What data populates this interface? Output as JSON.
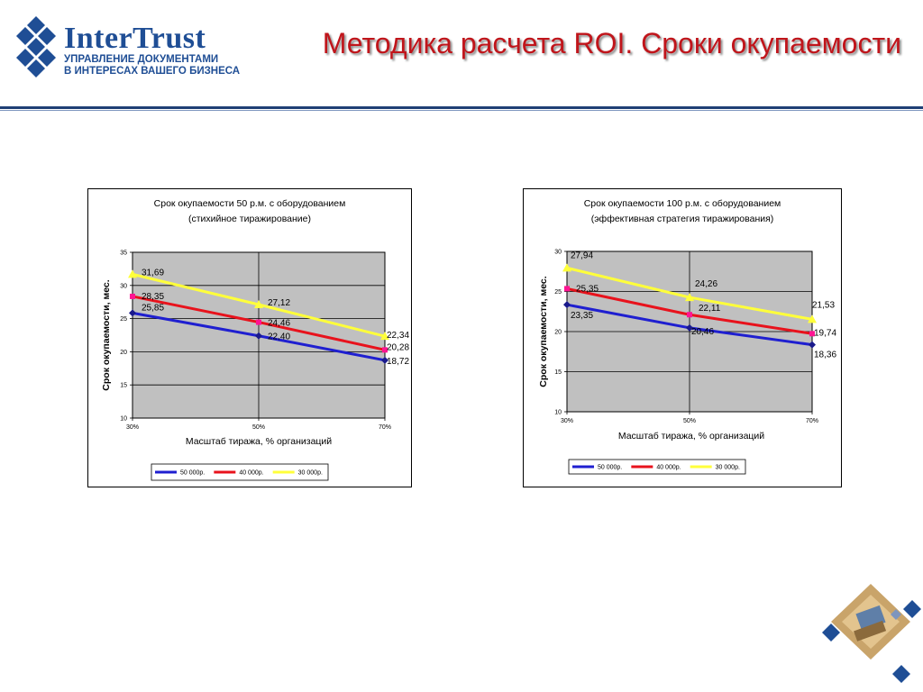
{
  "logo": {
    "name": "InterTrust",
    "tagline_line1": "УПРАВЛЕНИЕ ДОКУМЕНТАМИ",
    "tagline_line2": "В ИНТЕРЕСАХ ВАШЕГО БИЗНЕСА"
  },
  "slide_title": "Методика расчета ROI. Сроки окупаемости",
  "colors": {
    "brand_blue": "#1f4e95",
    "title_red": "#c0151b",
    "plot_gray": "#c0c0c0",
    "series_50000": "#1f1fd0",
    "series_40000": "#e8121c",
    "series_30000": "#ffff3a"
  },
  "chart_data": [
    {
      "type": "line",
      "title_line1": "Срок окупаемости 50 р.м. с оборудованием",
      "title_line2": "(стихийное тиражирование)",
      "xlabel": "Масштаб тиража, % организаций",
      "ylabel": "Срок окупаемости, мес.",
      "categories": [
        "30%",
        "50%",
        "70%"
      ],
      "ylim": [
        10,
        35
      ],
      "yticks": [
        "10",
        "15",
        "20",
        "25",
        "30",
        "35"
      ],
      "grid": true,
      "legend_position": "bottom",
      "series": [
        {
          "name": "50 000р.",
          "values": [
            25.85,
            22.4,
            18.72
          ],
          "labels": [
            "25,85",
            "22,40",
            "18,72"
          ],
          "marker": "diamond"
        },
        {
          "name": "40 000р.",
          "values": [
            28.35,
            24.46,
            20.28
          ],
          "labels": [
            "28,35",
            "24,46",
            "20,28"
          ],
          "marker": "square"
        },
        {
          "name": "30 000р.",
          "values": [
            31.69,
            27.12,
            22.34
          ],
          "labels": [
            "31,69",
            "27,12",
            "22,34"
          ],
          "marker": "triangle"
        }
      ]
    },
    {
      "type": "line",
      "title_line1": "Срок окупаемости 100 р.м. с оборудованием",
      "title_line2": "(эффективная стратегия тиражирования)",
      "xlabel": "Масштаб тиража, % организаций",
      "ylabel": "Срок окупаемости, мес.",
      "categories": [
        "30%",
        "50%",
        "70%"
      ],
      "ylim": [
        10,
        30
      ],
      "yticks": [
        "10",
        "15",
        "20",
        "25",
        "30"
      ],
      "grid": true,
      "legend_position": "bottom",
      "series": [
        {
          "name": "50 000р.",
          "values": [
            23.35,
            20.46,
            18.36
          ],
          "labels": [
            "23,35",
            "20,46",
            "18,36"
          ],
          "marker": "diamond"
        },
        {
          "name": "40 000р.",
          "values": [
            25.35,
            22.11,
            19.74
          ],
          "labels": [
            "25,35",
            "22,11",
            "19,74"
          ],
          "marker": "square"
        },
        {
          "name": "30 000р.",
          "values": [
            27.94,
            24.26,
            21.53
          ],
          "labels": [
            "27,94",
            "24,26",
            "21,53"
          ],
          "marker": "triangle"
        }
      ]
    }
  ]
}
